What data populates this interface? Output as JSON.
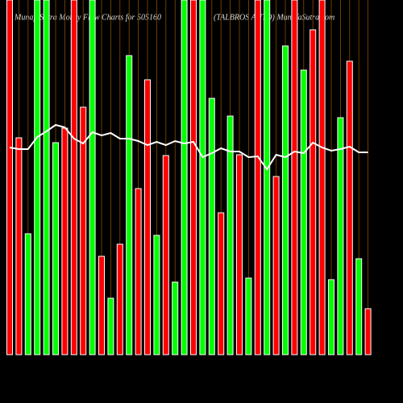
{
  "chart_data": {
    "type": "bar-line",
    "title": "MunafaSutra Money Flow Charts for 505160",
    "subtitle": "(TALBROS AUTO) MunafaSutra.com",
    "ylim": [
      0,
      440
    ],
    "grid": true,
    "grid_color": "#8a4a00",
    "line_color": "#ffffff",
    "bar_values": [
      440,
      269,
      150,
      440,
      440,
      263,
      281,
      440,
      307,
      440,
      122,
      70,
      137,
      371,
      206,
      341,
      148,
      247,
      90,
      440,
      440,
      440,
      318,
      176,
      296,
      248,
      95,
      440,
      440,
      221,
      383,
      440,
      353,
      403,
      440,
      93,
      294,
      364,
      119,
      57
    ],
    "bar_colors": [
      "#ff0000",
      "#ff0000",
      "#00ff00",
      "#00ff00",
      "#00ff00",
      "#00ff00",
      "#ff0000",
      "#ff0000",
      "#ff0000",
      "#00ff00",
      "#ff0000",
      "#00ff00",
      "#ff0000",
      "#00ff00",
      "#ff0000",
      "#ff0000",
      "#00ff00",
      "#ff0000",
      "#00ff00",
      "#00ff00",
      "#ff0000",
      "#00ff00",
      "#00ff00",
      "#ff0000",
      "#00ff00",
      "#ff0000",
      "#00ff00",
      "#ff0000",
      "#00ff00",
      "#ff0000",
      "#00ff00",
      "#ff0000",
      "#00ff00",
      "#ff0000",
      "#ff0000",
      "#00ff00",
      "#00ff00",
      "#ff0000",
      "#00ff00",
      "#ff0000"
    ],
    "line_values": [
      257,
      255,
      255,
      270,
      277,
      285,
      282,
      268,
      262,
      276,
      272,
      275,
      268,
      268,
      265,
      260,
      264,
      260,
      265,
      262,
      264,
      245,
      250,
      256,
      252,
      252,
      245,
      246,
      230,
      248,
      245,
      252,
      250,
      263,
      257,
      253,
      255,
      258,
      251,
      251
    ]
  }
}
